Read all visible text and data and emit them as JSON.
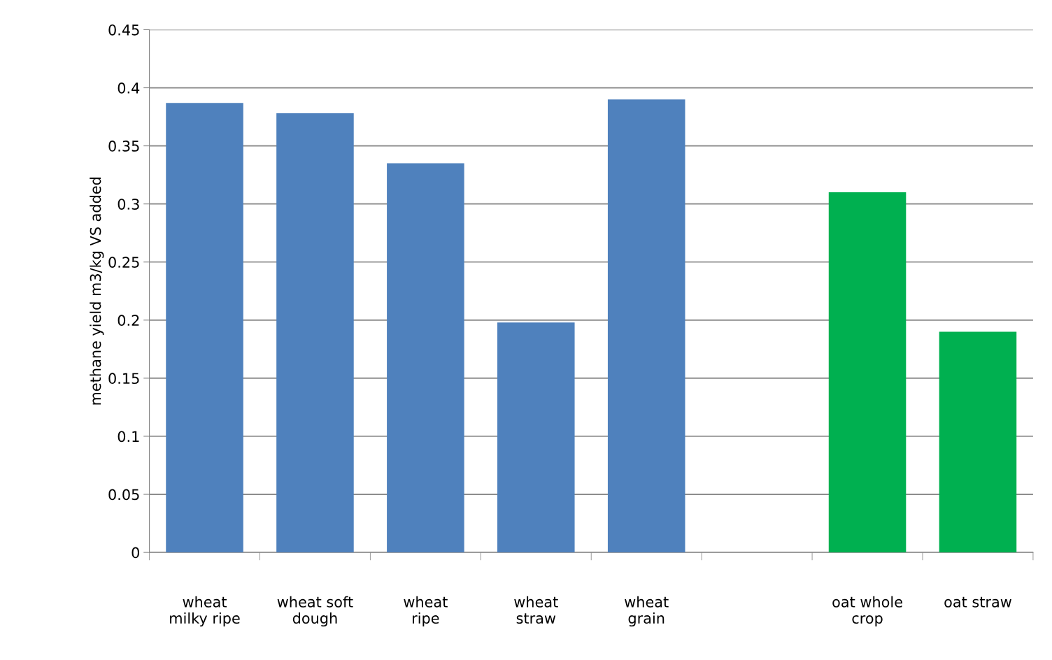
{
  "chart_data": {
    "type": "bar",
    "ylabel": "methane yield m3/kg VS added",
    "categories": [
      "wheat\nmilky ripe",
      "wheat soft\ndough",
      "wheat\nripe",
      "wheat\nstraw",
      "wheat\ngrain",
      null,
      "oat whole\ncrop",
      "oat straw"
    ],
    "values": [
      0.387,
      0.378,
      0.335,
      0.198,
      0.39,
      null,
      0.31,
      0.19
    ],
    "colors": [
      "#4f81bd",
      "#4f81bd",
      "#4f81bd",
      "#4f81bd",
      "#4f81bd",
      "#4f81bd",
      "#00b050",
      "#00b050"
    ],
    "ylim": [
      0,
      0.45
    ],
    "yticks": [
      0,
      0.05,
      0.1,
      0.15,
      0.2,
      0.25,
      0.3,
      0.35,
      0.4,
      0.45
    ],
    "grid": "y"
  }
}
